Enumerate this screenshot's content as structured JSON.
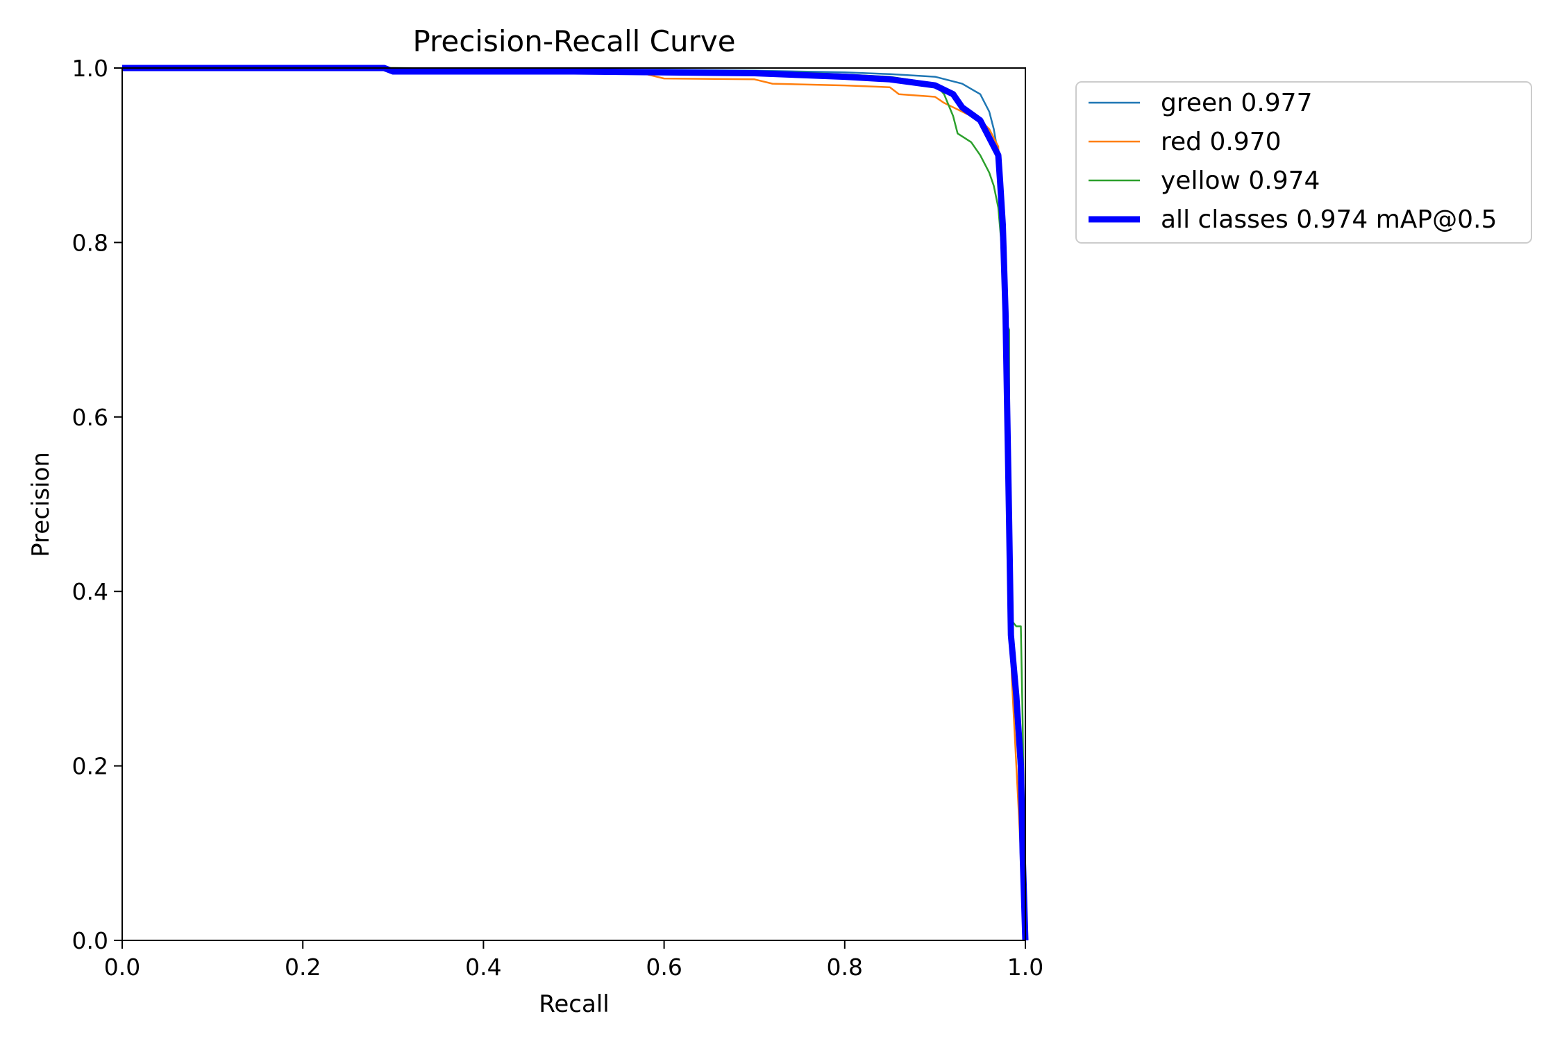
{
  "chart_data": {
    "type": "line",
    "title": "Precision-Recall Curve",
    "xlabel": "Recall",
    "ylabel": "Precision",
    "xlim": [
      0,
      1
    ],
    "ylim": [
      0,
      1
    ],
    "xticks": [
      "0.0",
      "0.2",
      "0.4",
      "0.6",
      "0.8",
      "1.0"
    ],
    "yticks": [
      "0.0",
      "0.2",
      "0.4",
      "0.6",
      "0.8",
      "1.0"
    ],
    "grid": false,
    "legend_position": "outside top-right",
    "series": [
      {
        "name": "green 0.977",
        "color": "#1f77b4",
        "line_width": "thin",
        "points": [
          [
            0,
            1
          ],
          [
            0.3,
            1
          ],
          [
            0.5,
            0.998
          ],
          [
            0.6,
            0.998
          ],
          [
            0.7,
            0.997
          ],
          [
            0.8,
            0.995
          ],
          [
            0.85,
            0.993
          ],
          [
            0.9,
            0.99
          ],
          [
            0.93,
            0.982
          ],
          [
            0.95,
            0.97
          ],
          [
            0.96,
            0.95
          ],
          [
            0.965,
            0.93
          ],
          [
            0.97,
            0.9
          ],
          [
            0.975,
            0.8
          ],
          [
            0.978,
            0.65
          ],
          [
            0.98,
            0.5
          ],
          [
            0.982,
            0.36
          ],
          [
            0.99,
            0.25
          ],
          [
            0.995,
            0.15
          ],
          [
            0.998,
            0.05
          ],
          [
            1.0,
            0
          ]
        ]
      },
      {
        "name": "red 0.970",
        "color": "#ff7f0e",
        "line_width": "thin",
        "points": [
          [
            0,
            1
          ],
          [
            0.3,
            1
          ],
          [
            0.5,
            0.995
          ],
          [
            0.58,
            0.993
          ],
          [
            0.6,
            0.988
          ],
          [
            0.7,
            0.987
          ],
          [
            0.72,
            0.982
          ],
          [
            0.8,
            0.98
          ],
          [
            0.85,
            0.978
          ],
          [
            0.86,
            0.97
          ],
          [
            0.9,
            0.967
          ],
          [
            0.91,
            0.96
          ],
          [
            0.93,
            0.95
          ],
          [
            0.95,
            0.94
          ],
          [
            0.96,
            0.93
          ],
          [
            0.97,
            0.91
          ],
          [
            0.975,
            0.8
          ],
          [
            0.978,
            0.65
          ],
          [
            0.98,
            0.5
          ],
          [
            0.985,
            0.3
          ],
          [
            0.99,
            0.2
          ],
          [
            0.995,
            0.1
          ],
          [
            1.0,
            0
          ]
        ]
      },
      {
        "name": "yellow 0.974",
        "color": "#2ca02c",
        "line_width": "thin",
        "points": [
          [
            0,
            1
          ],
          [
            0.3,
            1
          ],
          [
            0.6,
            0.997
          ],
          [
            0.75,
            0.995
          ],
          [
            0.85,
            0.99
          ],
          [
            0.9,
            0.982
          ],
          [
            0.91,
            0.97
          ],
          [
            0.92,
            0.945
          ],
          [
            0.925,
            0.925
          ],
          [
            0.94,
            0.915
          ],
          [
            0.95,
            0.9
          ],
          [
            0.96,
            0.88
          ],
          [
            0.965,
            0.865
          ],
          [
            0.97,
            0.84
          ],
          [
            0.975,
            0.78
          ],
          [
            0.978,
            0.71
          ],
          [
            0.982,
            0.7
          ],
          [
            0.982,
            0.37
          ],
          [
            0.99,
            0.36
          ],
          [
            0.995,
            0.36
          ],
          [
            0.997,
            0.25
          ],
          [
            1.0,
            0
          ]
        ]
      },
      {
        "name": "all classes 0.974 mAP@0.5",
        "color": "#0000ff",
        "line_width": "thick",
        "points": [
          [
            0,
            1
          ],
          [
            0.29,
            1
          ],
          [
            0.3,
            0.996
          ],
          [
            0.5,
            0.996
          ],
          [
            0.6,
            0.995
          ],
          [
            0.7,
            0.994
          ],
          [
            0.8,
            0.99
          ],
          [
            0.85,
            0.987
          ],
          [
            0.9,
            0.98
          ],
          [
            0.92,
            0.97
          ],
          [
            0.93,
            0.955
          ],
          [
            0.95,
            0.94
          ],
          [
            0.96,
            0.92
          ],
          [
            0.97,
            0.9
          ],
          [
            0.972,
            0.87
          ],
          [
            0.975,
            0.82
          ],
          [
            0.978,
            0.72
          ],
          [
            0.98,
            0.6
          ],
          [
            0.982,
            0.48
          ],
          [
            0.984,
            0.35
          ],
          [
            0.99,
            0.28
          ],
          [
            0.995,
            0.2
          ],
          [
            0.997,
            0.1
          ],
          [
            1.0,
            0
          ]
        ]
      }
    ]
  }
}
